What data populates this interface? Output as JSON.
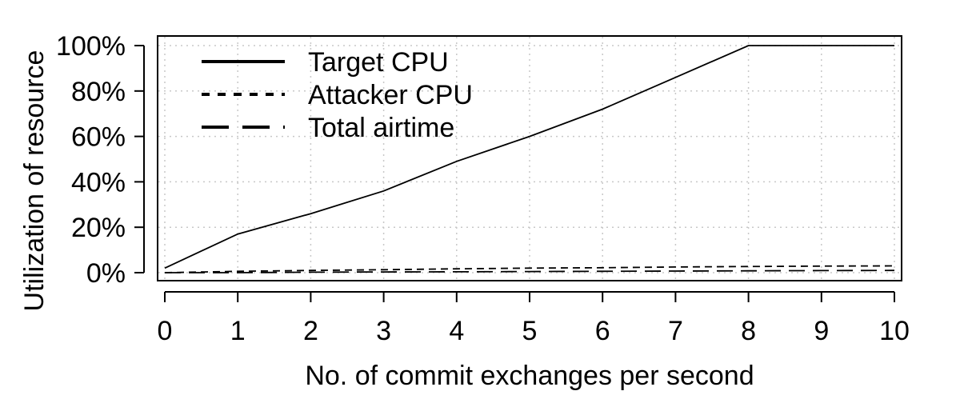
{
  "chart_data": {
    "type": "line",
    "title": "",
    "xlabel": "No. of commit exchanges per second",
    "ylabel": "Utilization of resource",
    "x": [
      0,
      1,
      2,
      3,
      4,
      5,
      6,
      7,
      8,
      9,
      10
    ],
    "xlim": [
      0,
      10
    ],
    "ylim": [
      0,
      100
    ],
    "x_ticks": [
      "0",
      "1",
      "2",
      "3",
      "4",
      "5",
      "6",
      "7",
      "8",
      "9",
      "10"
    ],
    "y_ticks": [
      "0%",
      "20%",
      "40%",
      "60%",
      "80%",
      "100%"
    ],
    "grid": true,
    "legend_position": "top-left",
    "series": [
      {
        "name": "Target CPU",
        "style": "solid",
        "values": [
          2,
          17,
          26,
          36,
          49,
          60,
          72,
          86,
          100,
          100,
          100
        ]
      },
      {
        "name": "Attacker CPU",
        "style": "short-dash",
        "values": [
          0,
          0.6,
          1.0,
          1.3,
          1.7,
          2.0,
          2.2,
          2.5,
          2.7,
          2.9,
          3.0
        ]
      },
      {
        "name": "Total airtime",
        "style": "long-dash",
        "values": [
          0,
          0,
          0.2,
          0.3,
          0.4,
          0.5,
          0.6,
          0.7,
          0.8,
          0.9,
          1.0
        ]
      }
    ]
  }
}
